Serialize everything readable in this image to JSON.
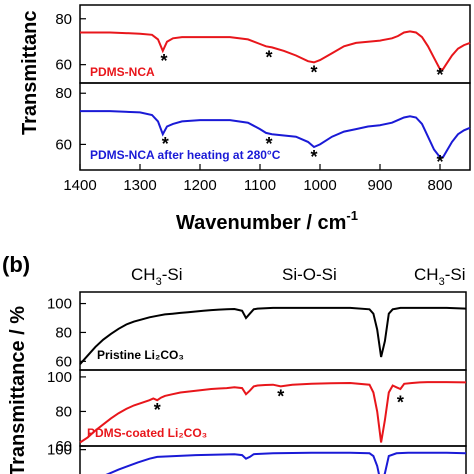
{
  "colors": {
    "red": "#e8161b",
    "blue": "#1a1ad6",
    "black": "#000000",
    "legend_black": "#000000"
  },
  "panel_a": {
    "ylabel": "Transmittanc",
    "xlabel": "Wavenumber / cm",
    "xlabel_sup": "-1"
  },
  "panel_b": {
    "label": "(b)",
    "ylabel": "Transmittance / %",
    "groups": [
      "CH",
      "3",
      "-Si",
      "Si-O-Si",
      "CH",
      "3",
      "-Si"
    ]
  },
  "chart_data": [
    {
      "type": "line",
      "panel": "a-top",
      "xlim": [
        1400,
        750
      ],
      "ylim": [
        52,
        86
      ],
      "yticks": [
        60,
        80
      ],
      "series": [
        {
          "name": "PDMS-NCA",
          "color": "#e8161b",
          "x": [
            1400,
            1350,
            1300,
            1280,
            1270,
            1262,
            1255,
            1245,
            1230,
            1200,
            1150,
            1120,
            1100,
            1090,
            1080,
            1060,
            1040,
            1020,
            1010,
            1000,
            980,
            960,
            940,
            920,
            900,
            880,
            870,
            860,
            850,
            840,
            830,
            820,
            810,
            800,
            795,
            790,
            780,
            770,
            760,
            750
          ],
          "y": [
            74,
            74,
            73.5,
            73,
            71,
            66,
            70,
            71.5,
            72,
            72,
            72,
            71,
            69,
            68,
            67.5,
            66,
            64,
            61.5,
            61,
            62,
            65,
            68,
            69.5,
            70,
            70.5,
            71.5,
            72.5,
            74,
            74.5,
            74,
            72,
            68,
            63,
            58,
            58,
            60,
            64,
            67,
            68.5,
            69.5
          ]
        }
      ],
      "annotations": [
        {
          "x": 1260,
          "text": "*"
        },
        {
          "x": 1085,
          "text": "*"
        },
        {
          "x": 1010,
          "text": "*"
        },
        {
          "x": 800,
          "text": "*"
        }
      ]
    },
    {
      "type": "line",
      "panel": "a-bottom",
      "xlim": [
        1400,
        750
      ],
      "xticks": [
        1400,
        1300,
        1200,
        1100,
        1000,
        900,
        800
      ],
      "ylim": [
        50,
        84
      ],
      "yticks": [
        60,
        80
      ],
      "series": [
        {
          "name": "PDMS-NCA after heating at 280°C",
          "color": "#1a1ad6",
          "x": [
            1400,
            1350,
            1300,
            1280,
            1270,
            1262,
            1255,
            1245,
            1230,
            1200,
            1150,
            1120,
            1100,
            1090,
            1080,
            1060,
            1040,
            1020,
            1010,
            1000,
            980,
            960,
            940,
            920,
            900,
            880,
            870,
            860,
            850,
            840,
            830,
            820,
            810,
            800,
            795,
            790,
            780,
            770,
            760,
            750
          ],
          "y": [
            73,
            73,
            72.5,
            71.5,
            69,
            64,
            67,
            68,
            69,
            69.5,
            69.5,
            68.5,
            66,
            64.5,
            64,
            63.5,
            63,
            61,
            59,
            60,
            63,
            65,
            66,
            67,
            67.5,
            68.5,
            69.5,
            70.5,
            71,
            70.5,
            68,
            63,
            58,
            55,
            55,
            57,
            61,
            64,
            65.5,
            66.5
          ]
        }
      ],
      "annotations": [
        {
          "x": 1258,
          "text": "*"
        },
        {
          "x": 1085,
          "text": "*"
        },
        {
          "x": 1010,
          "text": "*"
        },
        {
          "x": 800,
          "text": "*"
        }
      ]
    },
    {
      "type": "line",
      "panel": "b-1",
      "ylim": [
        54,
        108
      ],
      "yticks": [
        60,
        80,
        100
      ],
      "series": [
        {
          "name": "Pristine Li₂CO₃",
          "color": "#000000",
          "x": [
            0,
            2,
            4,
            6,
            8,
            10,
            12,
            14,
            16,
            18,
            20,
            22,
            24,
            26,
            28,
            30,
            32,
            34,
            36,
            38,
            40,
            42,
            43,
            44,
            45,
            46,
            48,
            50,
            55,
            60,
            65,
            70,
            75,
            76,
            77,
            78,
            79,
            80,
            81,
            82,
            83,
            84,
            86,
            88,
            90,
            95,
            100
          ],
          "y": [
            58,
            64,
            70,
            75,
            79,
            82.5,
            85.5,
            87.5,
            89,
            90.5,
            91.5,
            92.5,
            93,
            93.5,
            94,
            94.5,
            95,
            95.5,
            95.8,
            96,
            96.2,
            95,
            90,
            93,
            96,
            96.5,
            96.8,
            97,
            97,
            97,
            97,
            97,
            96,
            93,
            82,
            63,
            74,
            93,
            96,
            96.5,
            97,
            97,
            97,
            97,
            97,
            97,
            96.5
          ]
        }
      ]
    },
    {
      "type": "line",
      "panel": "b-2",
      "ylim": [
        60,
        104
      ],
      "yticks": [
        60,
        80,
        100
      ],
      "series": [
        {
          "name": "PDMS-coated Li₂CO₃",
          "color": "#e8161b",
          "x": [
            0,
            2,
            4,
            6,
            8,
            10,
            12,
            14,
            16,
            18,
            19,
            20,
            21,
            22,
            24,
            26,
            28,
            30,
            32,
            34,
            36,
            38,
            40,
            42,
            43,
            44,
            45,
            46,
            48,
            50,
            52,
            55,
            60,
            65,
            70,
            75,
            76,
            77,
            78,
            79,
            80,
            81,
            82,
            83,
            84,
            86,
            88,
            90,
            95,
            100
          ],
          "y": [
            62,
            65,
            69,
            72.5,
            76,
            79,
            81.5,
            83.5,
            85,
            86.5,
            87.5,
            86.5,
            88,
            89,
            90,
            91,
            91.5,
            92,
            92.5,
            93,
            93.3,
            93.5,
            94,
            93.5,
            90,
            92,
            94.5,
            95,
            95.3,
            95.5,
            94.5,
            95.5,
            96,
            96.3,
            96.5,
            95.5,
            91,
            80,
            62,
            75,
            91,
            95,
            94,
            93,
            96,
            96.5,
            96.8,
            97,
            97,
            96.8
          ]
        }
      ],
      "annotations": [
        {
          "x": 20,
          "text": "*"
        },
        {
          "x": 52,
          "text": "*"
        },
        {
          "x": 83,
          "text": "*"
        }
      ]
    },
    {
      "type": "line",
      "panel": "b-3",
      "ylim": [
        60,
        104
      ],
      "yticks": [
        100
      ],
      "series": [
        {
          "color": "#1a1ad6",
          "x": [
            0,
            10,
            15,
            18,
            20,
            25,
            30,
            40,
            42,
            43,
            44,
            45,
            50,
            60,
            70,
            75,
            76,
            77,
            78,
            79,
            80,
            82,
            85,
            90,
            95,
            100
          ],
          "y": [
            60,
            78,
            86,
            90,
            92,
            93,
            94,
            95,
            94,
            90,
            92,
            95,
            96,
            96.5,
            96.5,
            96,
            93,
            82,
            62,
            74,
            93,
            96,
            96.5,
            96.5,
            96.5,
            96
          ]
        }
      ]
    }
  ]
}
